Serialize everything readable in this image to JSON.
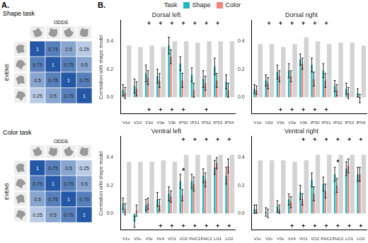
{
  "figure": {
    "panel_b_label": "B.",
    "legend_title": "Task",
    "panel_a": {
      "label": "A.",
      "matrices": [
        {
          "title": "Shape task",
          "columns": "ODDS",
          "rows": "EVENS",
          "cells": [
            [
              1,
              0.75,
              0.5,
              0.25
            ],
            [
              0.75,
              1,
              0.75,
              0.5
            ],
            [
              0.5,
              0.75,
              1,
              0.75
            ],
            [
              0.25,
              0.5,
              0.75,
              1
            ]
          ]
        },
        {
          "title": "Color task",
          "columns": "ODDS",
          "rows": "EVENS",
          "cells": [
            [
              1,
              0.75,
              0.5,
              0.25
            ],
            [
              0.75,
              1,
              0.75,
              0.5
            ],
            [
              0.5,
              0.75,
              1,
              0.75
            ],
            [
              0.25,
              0.5,
              0.75,
              1
            ]
          ]
        }
      ]
    }
  },
  "chart_data": [
    {
      "type": "bar",
      "title": "Dorsal left",
      "y_label": "Correlation with shape model",
      "categories": [
        "V1d",
        "V2d",
        "V3d",
        "V3a",
        "V3b",
        "IPS0",
        "IPS1",
        "IPS2",
        "IPS3",
        "IPS4"
      ],
      "series": [
        {
          "name": "Shape",
          "color": "#20b8be",
          "values": [
            0.05,
            0.08,
            0.17,
            0.15,
            0.37,
            0.24,
            0.16,
            0.13,
            0.22,
            0.11
          ],
          "errors": [
            0.04,
            0.05,
            0.06,
            0.05,
            0.06,
            0.05,
            0.05,
            0.06,
            0.06,
            0.05
          ]
        },
        {
          "name": "Color",
          "color": "#f3827b",
          "values": [
            0.03,
            0.06,
            0.14,
            0.12,
            0.29,
            0.12,
            0.05,
            0.1,
            0.12,
            0.05
          ],
          "errors": [
            0.04,
            0.05,
            0.05,
            0.05,
            0.05,
            0.05,
            0.05,
            0.05,
            0.05,
            0.05
          ]
        }
      ],
      "ceiling": {
        "color": "#d3d3d3",
        "values": [
          0.37,
          0.36,
          0.37,
          0.36,
          0.4,
          0.4,
          0.39,
          0.4,
          0.4,
          0.4
        ]
      },
      "top_marks": [
        null,
        null,
        "+",
        "+",
        "+",
        "+",
        "+",
        "+",
        "+",
        null
      ],
      "bottom_marks": [
        null,
        null,
        "+",
        "+",
        "+",
        "+",
        null,
        "+",
        null,
        null
      ],
      "annotations": [],
      "ylim": [
        -0.12,
        0.55
      ],
      "yticks": [
        {
          "value": 0,
          "label": "0.0"
        },
        0.2,
        0.4
      ],
      "grid": false
    },
    {
      "type": "bar",
      "title": "Dorsal right",
      "categories": [
        "V1d",
        "V2d",
        "V3d",
        "V3a",
        "V3b",
        "IPS0",
        "IPS1",
        "IPS2",
        "IPS3",
        "IPS4"
      ],
      "series": [
        {
          "name": "Shape",
          "color": "#20b8be",
          "values": [
            0.06,
            0.12,
            0.18,
            0.19,
            0.27,
            0.23,
            0.19,
            0.08,
            0.06,
            0.03
          ],
          "errors": [
            0.03,
            0.04,
            0.05,
            0.05,
            0.04,
            0.05,
            0.05,
            0.04,
            0.04,
            0.03
          ]
        },
        {
          "name": "Color",
          "color": "#f3827b",
          "values": [
            0.05,
            0.1,
            0.15,
            0.15,
            0.24,
            0.13,
            0.12,
            0.05,
            0.03,
            -0.01
          ],
          "errors": [
            0.03,
            0.04,
            0.04,
            0.04,
            0.04,
            0.05,
            0.05,
            0.04,
            0.04,
            0.03
          ]
        }
      ],
      "ceiling": {
        "color": "#d3d3d3",
        "values": [
          0.38,
          0.38,
          0.36,
          0.38,
          0.43,
          0.4,
          0.38,
          0.39,
          0.39,
          0.37
        ]
      },
      "top_marks": [
        null,
        "+",
        "+",
        "+",
        "+",
        "+",
        "+",
        null,
        null,
        null
      ],
      "bottom_marks": [
        null,
        null,
        "+",
        "+",
        "+",
        "+",
        "+",
        null,
        null,
        null
      ],
      "annotations": [],
      "ylim": [
        -0.12,
        0.55
      ],
      "yticks": [
        {
          "value": 0,
          "label": "0.0"
        },
        0.2,
        0.4
      ],
      "grid": false
    },
    {
      "type": "bar",
      "title": "Ventral left",
      "y_label": "Correlation with shape model",
      "categories": [
        "V1v",
        "V2v",
        "V3v",
        "hV4",
        "VO1",
        "VO2",
        "PHC1",
        "PHC2",
        "LO1",
        "LO2"
      ],
      "series": [
        {
          "name": "Shape",
          "color": "#20b8be",
          "values": [
            0.07,
            -0.06,
            0.06,
            0.1,
            0.14,
            0.23,
            0.23,
            0.27,
            0.33,
            0.27
          ],
          "errors": [
            0.04,
            0.04,
            0.04,
            0.05,
            0.05,
            0.05,
            0.05,
            0.05,
            0.05,
            0.06
          ]
        },
        {
          "name": "Color",
          "color": "#f3827b",
          "values": [
            0.03,
            0.02,
            0.07,
            0.06,
            0.12,
            0.13,
            0.21,
            0.24,
            0.36,
            0.34
          ],
          "errors": [
            0.04,
            0.04,
            0.04,
            0.04,
            0.04,
            0.04,
            0.05,
            0.05,
            0.04,
            0.05
          ]
        }
      ],
      "ceiling": {
        "color": "#d3d3d3",
        "values": [
          0.37,
          0.37,
          0.37,
          0.38,
          0.37,
          0.42,
          0.42,
          0.42,
          0.42,
          0.42
        ]
      },
      "top_marks": [
        null,
        null,
        null,
        null,
        null,
        "+",
        "+",
        "+",
        "+",
        "+"
      ],
      "bottom_marks": [
        null,
        null,
        null,
        "+",
        "+",
        "+",
        "+",
        "+",
        "+",
        "+"
      ],
      "annotations": [
        {
          "text": "*",
          "category": "VO2",
          "y": 0.3
        }
      ],
      "ylim": [
        -0.12,
        0.55
      ],
      "yticks": [
        {
          "value": 0,
          "label": "0.0"
        },
        0.2,
        0.4
      ],
      "grid": false
    },
    {
      "type": "bar",
      "title": "Ventral right",
      "categories": [
        "V1v",
        "V2v",
        "V3v",
        "hV4",
        "VO1",
        "VO2",
        "PHC1",
        "PHC2",
        "LO1",
        "LO2"
      ],
      "series": [
        {
          "name": "Shape",
          "color": "#20b8be",
          "values": [
            0.03,
            0.01,
            0.05,
            0.1,
            0.15,
            0.24,
            0.21,
            0.28,
            0.32,
            0.28
          ],
          "errors": [
            0.03,
            0.03,
            0.04,
            0.04,
            0.05,
            0.05,
            0.05,
            0.05,
            0.05,
            0.05
          ]
        },
        {
          "name": "Color",
          "color": "#f3827b",
          "values": [
            0.03,
            0,
            0.03,
            0.08,
            0.1,
            0.14,
            0.16,
            0.2,
            0.34,
            0.28
          ],
          "errors": [
            0.03,
            0.03,
            0.03,
            0.04,
            0.04,
            0.05,
            0.05,
            0.05,
            0.05,
            0.05
          ]
        }
      ],
      "ceiling": {
        "color": "#d3d3d3",
        "values": [
          0.38,
          0.38,
          0.38,
          0.37,
          0.38,
          0.42,
          0.42,
          0.42,
          0.42,
          0.42
        ]
      },
      "top_marks": [
        null,
        null,
        null,
        null,
        "+",
        "+",
        "+",
        "+",
        "+",
        "+"
      ],
      "bottom_marks": [
        null,
        null,
        null,
        "+",
        "+",
        "+",
        "+",
        "+",
        "+",
        "+"
      ],
      "annotations": [
        {
          "text": "*",
          "category": "PHC2",
          "y": 0.36
        }
      ],
      "ylim": [
        -0.12,
        0.55
      ],
      "yticks": [
        {
          "value": 0,
          "label": "0.0"
        },
        0.2,
        0.4
      ],
      "grid": false
    }
  ]
}
